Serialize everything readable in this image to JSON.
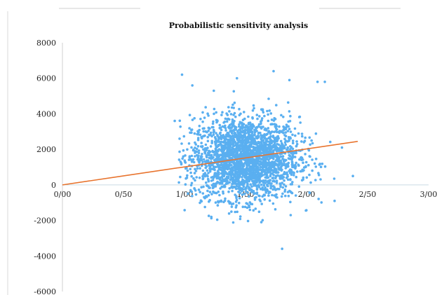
{
  "chart_data": {
    "type": "scatter",
    "title": "Probabilistic sensitivity analysis",
    "xlabel": "",
    "ylabel": "",
    "xlim": [
      0,
      3
    ],
    "ylim": [
      -6000,
      8000
    ],
    "x_ticks": [
      {
        "value": 0,
        "label": "0/00"
      },
      {
        "value": 0.5,
        "label": "0/50"
      },
      {
        "value": 1.0,
        "label": "1/00"
      },
      {
        "value": 1.5,
        "label": "1/50"
      },
      {
        "value": 2.0,
        "label": "2/00"
      },
      {
        "value": 2.5,
        "label": "2/50"
      },
      {
        "value": 3.0,
        "label": "3/00"
      }
    ],
    "y_ticks": [
      {
        "value": 8000,
        "label": "8000"
      },
      {
        "value": 6000,
        "label": "6000"
      },
      {
        "value": 4000,
        "label": "4000"
      },
      {
        "value": 2000,
        "label": "2000"
      },
      {
        "value": 0,
        "label": "0"
      },
      {
        "value": -2000,
        "label": "-2000"
      },
      {
        "value": -4000,
        "label": "-4000"
      },
      {
        "value": -6000,
        "label": "-6000"
      }
    ],
    "grid": false,
    "legend": false,
    "series": [
      {
        "kind": "scatter",
        "color": "#5aaff0",
        "cloud_center": {
          "x": 1.5,
          "y": 1500
        },
        "cloud_spread_sd": {
          "x": 0.22,
          "y": 1150
        },
        "points": [
          {
            "x": 0.98,
            "y": 6200
          },
          {
            "x": 1.43,
            "y": 6000
          },
          {
            "x": 1.73,
            "y": 6400
          },
          {
            "x": 1.86,
            "y": 5900
          },
          {
            "x": 2.09,
            "y": 5800
          },
          {
            "x": 2.15,
            "y": 5800
          },
          {
            "x": 1.24,
            "y": 5300
          },
          {
            "x": 0.92,
            "y": 3600
          },
          {
            "x": 0.96,
            "y": 2600
          },
          {
            "x": 2.29,
            "y": 2100
          },
          {
            "x": 2.38,
            "y": 500
          },
          {
            "x": 1.02,
            "y": 400
          },
          {
            "x": 1.05,
            "y": -300
          },
          {
            "x": 2.23,
            "y": -900
          },
          {
            "x": 1.22,
            "y": -1800
          },
          {
            "x": 1.63,
            "y": -2100
          },
          {
            "x": 1.87,
            "y": -1700
          },
          {
            "x": 1.8,
            "y": -3600
          }
        ]
      },
      {
        "kind": "line",
        "color": "#e8732d",
        "points": [
          {
            "x": 0,
            "y": 0
          },
          {
            "x": 2.42,
            "y": 2450
          }
        ]
      }
    ]
  }
}
